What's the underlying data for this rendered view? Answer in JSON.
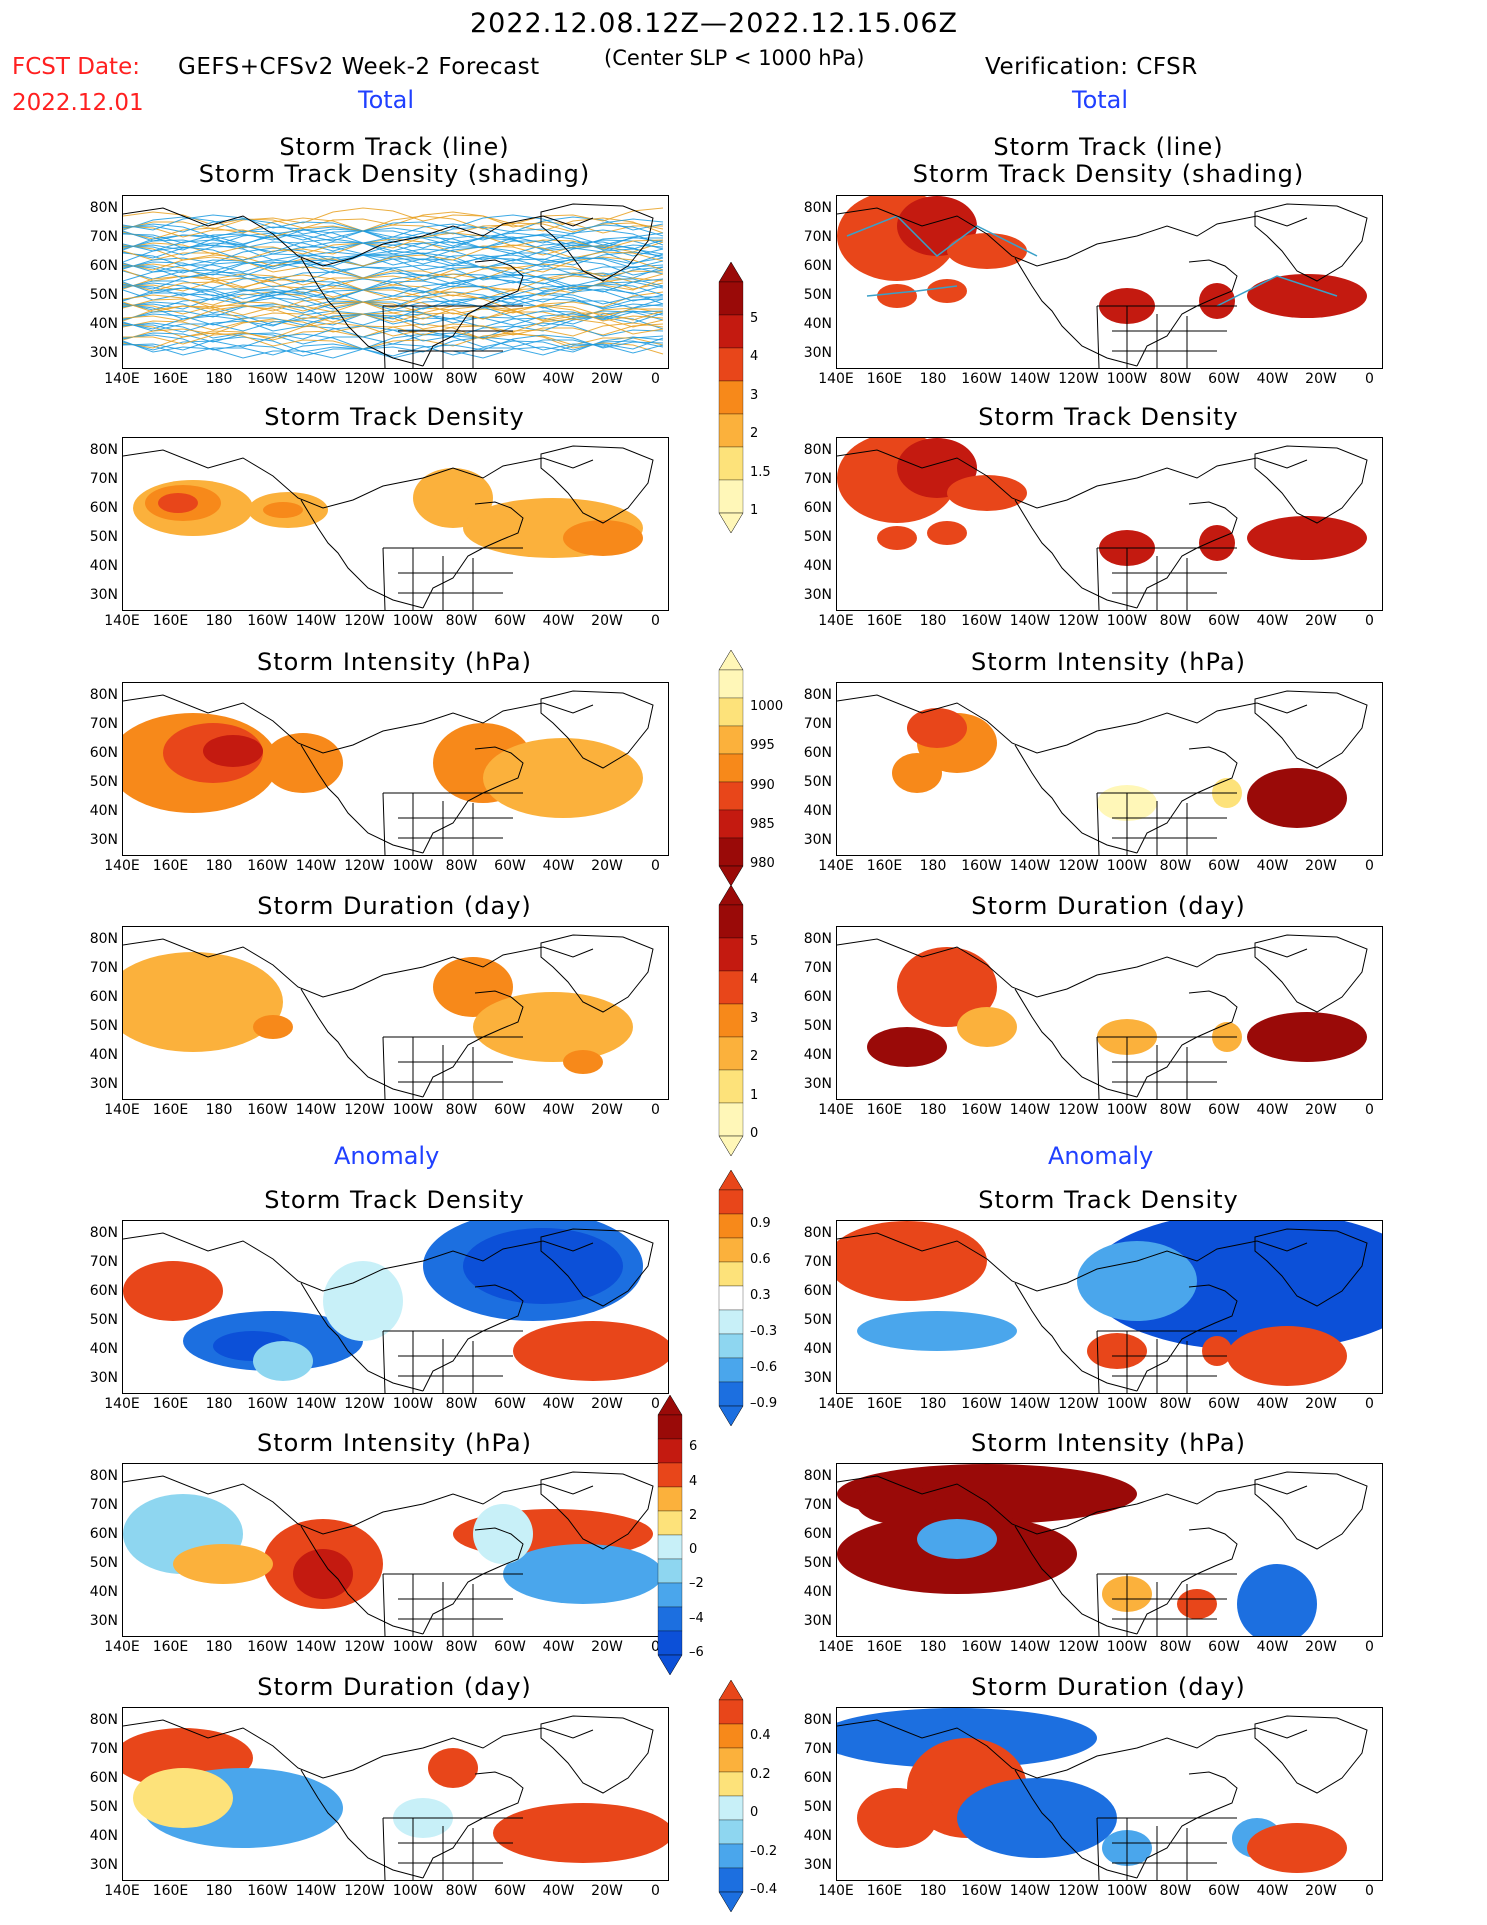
{
  "header": {
    "date_range": "2022.12.08.12Z—2022.12.15.06Z",
    "fcst_label": "FCST Date:",
    "fcst_model": "GEFS+CFSv2 Week-2 Forecast",
    "slp_note": "(Center SLP < 1000 hPa)",
    "fcst_date": "2022.12.01",
    "verification": "Verification: CFSR"
  },
  "sections": {
    "total": "Total",
    "anomaly": "Anomaly"
  },
  "panel_titles": {
    "track_line": "Storm Track (line)",
    "track_shading": "Storm Track Density (shading)",
    "track_density": "Storm Track Density",
    "intensity": "Storm Intensity (hPa)",
    "duration": "Storm Duration (day)"
  },
  "axes": {
    "lat_labels": [
      "80N",
      "70N",
      "60N",
      "50N",
      "40N",
      "30N"
    ],
    "lon_labels": [
      "140E",
      "160E",
      "180",
      "160W",
      "140W",
      "120W",
      "100W",
      "80W",
      "60W",
      "40W",
      "20W",
      "0"
    ]
  },
  "colorbars": {
    "density_total": [
      "5",
      "4",
      "3",
      "2",
      "1.5",
      "1"
    ],
    "intensity_total": [
      "1000",
      "995",
      "990",
      "985",
      "980"
    ],
    "duration_total": [
      "5",
      "4",
      "3",
      "2",
      "1",
      "0"
    ],
    "density_anom": [
      "0.9",
      "0.6",
      "0.3",
      "–0.3",
      "–0.6",
      "–0.9"
    ],
    "intensity_anom": [
      "6",
      "4",
      "2",
      "0",
      "–2",
      "–4",
      "–6"
    ],
    "duration_anom": [
      "0.4",
      "0.2",
      "0",
      "–0.2",
      "–0.4"
    ]
  },
  "colors": {
    "warm": [
      "#fff7b8",
      "#fde27a",
      "#fbb13c",
      "#f7891a",
      "#e8461a",
      "#c41a10",
      "#9a0a08"
    ],
    "cool": [
      "#c8f0f8",
      "#8ed6f0",
      "#4aa6ec",
      "#1c6fe0",
      "#0c50d8"
    ],
    "track_line_fcst": "#1a9ae0",
    "track_line_fcst2": "#e8a020",
    "track_line_verif": "#3aa0c8"
  }
}
